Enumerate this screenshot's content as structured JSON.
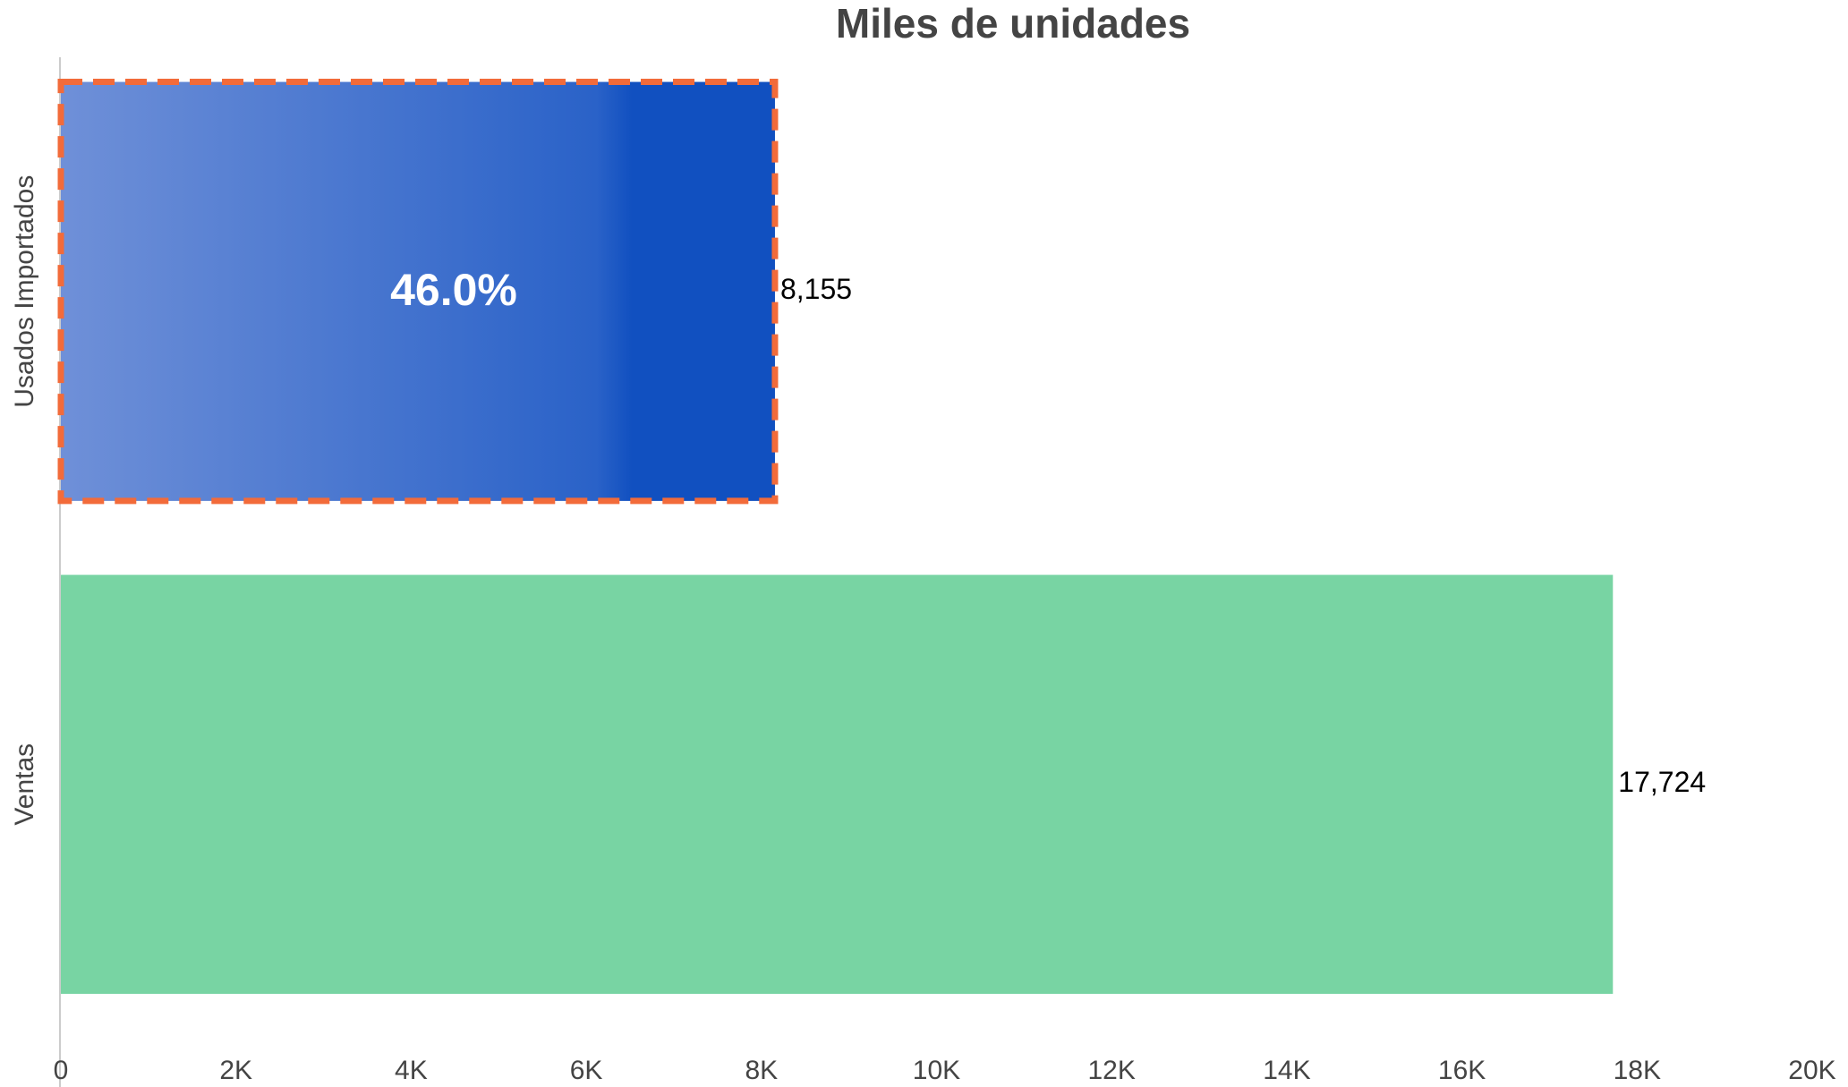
{
  "chart_data": {
    "type": "hbar",
    "title": "Miles de unidades",
    "categories": [
      "Usados Importados",
      "Ventas"
    ],
    "values": [
      8155,
      17724
    ],
    "value_labels": [
      "8,155",
      "17,724"
    ],
    "colors": [
      "#1150c0",
      "#78d4a3"
    ],
    "annotation": "46.0%",
    "xlim": [
      0,
      20000
    ],
    "xticks": [
      0,
      {
        "value": 2000,
        "label": "2K"
      },
      {
        "value": 4000,
        "label": "4K"
      },
      {
        "value": 6000,
        "label": "6K"
      },
      {
        "value": 8000,
        "label": "8K"
      },
      {
        "value": 10000,
        "label": "10K"
      },
      {
        "value": 12000,
        "label": "12K"
      },
      {
        "value": 14000,
        "label": "14K"
      },
      {
        "value": 16000,
        "label": "16K"
      },
      {
        "value": 18000,
        "label": "18K"
      },
      {
        "value": 20000,
        "label": "20K"
      }
    ],
    "grid": false
  }
}
